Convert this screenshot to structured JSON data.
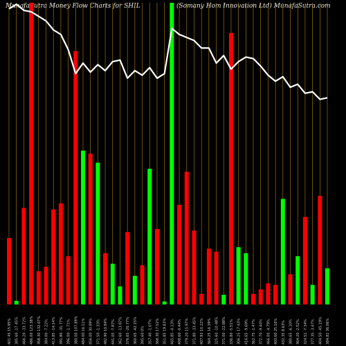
{
  "header": {
    "left": "MunafaSutra  Money Flow  Charts for SHIL",
    "right": "(Somany Hom Innovation  Ltd) MunafaSutra.com"
  },
  "chart_data": {
    "type": "bar",
    "title": "MunafaSutra  Money Flow  Charts for SHIL",
    "subtitle": "(Somany Hom Innovation  Ltd) MunafaSutra.com",
    "grid": true,
    "ylim": [
      0,
      100
    ],
    "colors": {
      "up": "#00ff00",
      "down": "#ff0000",
      "grid": "#b8860b",
      "line": "#ffffff"
    },
    "categories": [
      "401.45 15.95%",
      "385.60 -17.45%",
      "466.20 -33.72%",
      "486.00 123.38%",
      "358.30 132.07%",
      "384.00 -7.22%",
      "413.85 -14.14%",
      "391.80 -31.77%",
      "396.00 -1.71%",
      "380.00 107.89%",
      "484.00 16.11%",
      "456.00 30.89%",
      "371.50 -1.33%",
      "482.90 10.84%",
      "441.05 -7.87%",
      "362.60 -13.87%",
      "376.65 -20.77%",
      "360.65 -42.15%",
      "395.60 0%",
      "357.40 -1.07%",
      "368.30 17.52%",
      "351.85 19.83%",
      "465.85 -0.13%",
      "408.60 -0.44%",
      "379.20 15.97%",
      "371.80 -33.45%",
      "407.93 10.22%",
      "364.25 16.39%",
      "325.60 -10.48%",
      "371.00 -22.88%",
      "336.80 -5.51%",
      "306.25 17.43%",
      "416.65 -9.69%",
      "362.75 -1.47%",
      "372.70 -9.44%",
      "466.00 -4.79%",
      "400.60 25.16%",
      "432.35 8.63%",
      "380.65 -6.10%",
      "364.20 -2.52%",
      "324.51 -7.34%",
      "377.35 -3.47%",
      "404.50 -45.19%",
      "384.82 36.06%"
    ],
    "series": [
      {
        "values": [
          22,
          1.2,
          32,
          100,
          11,
          12.5,
          31.5,
          33.5,
          16,
          84,
          51,
          50,
          47,
          17,
          13.5,
          6,
          24,
          9.5,
          13,
          45,
          25,
          1,
          100,
          33,
          44,
          24.5,
          3.5,
          18.5,
          17.5,
          3.2,
          90,
          19,
          17,
          3.5,
          5,
          7,
          6.5,
          35,
          10,
          16,
          29,
          6.5,
          36,
          12
        ]
      },
      {
        "values": [
          98,
          99.5,
          97.5,
          97,
          95.5,
          94,
          91,
          89.5,
          84.5,
          76.5,
          80,
          77,
          79.5,
          77.5,
          80.5,
          81,
          75,
          77.5,
          76,
          78.5,
          75,
          76.5,
          91.5,
          89.5,
          88.5,
          87.5,
          85,
          85,
          80,
          82.5,
          78,
          80.5,
          82,
          81.5,
          79,
          76,
          74,
          75.5,
          72,
          73,
          70,
          70.5,
          68,
          68.5
        ]
      }
    ]
  }
}
